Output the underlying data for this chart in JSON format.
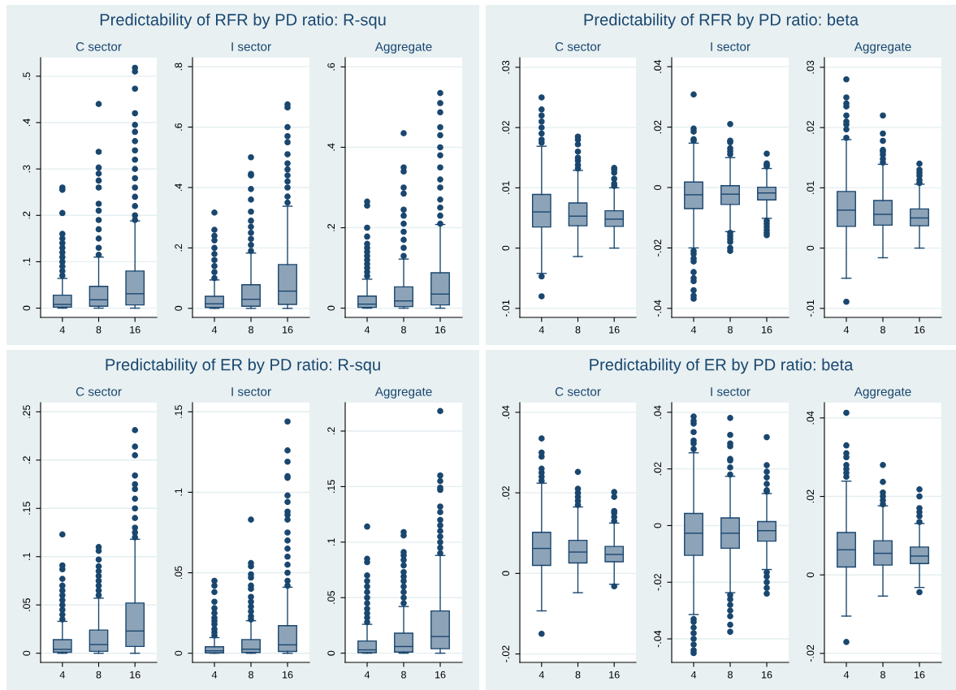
{
  "chart_data": [
    {
      "type": "box",
      "title": "Predictability of RFR by PD ratio: R-squ",
      "subtitle": "C sector",
      "categories": [
        "4",
        "8",
        "16"
      ],
      "color": "#8da3b8",
      "grid": "y",
      "ylim": [
        -0.02,
        0.54
      ],
      "yticks": [
        0,
        {
          "value": 0.1,
          "label": ".1"
        },
        {
          "value": 0.2,
          "label": ".2"
        },
        {
          "value": 0.3,
          "label": ".3"
        },
        {
          "value": 0.4,
          "label": ".4"
        },
        {
          "value": 0.5,
          "label": ".5"
        }
      ],
      "boxes": [
        {
          "low": 0,
          "q1": 0.002,
          "median": 0.008,
          "q3": 0.028,
          "high": 0.064,
          "outliers": [
            0.07,
            0.08,
            0.09,
            0.1,
            0.11,
            0.12,
            0.13,
            0.14,
            0.15,
            0.16,
            0.205,
            0.255,
            0.26
          ]
        },
        {
          "low": 0,
          "q1": 0.004,
          "median": 0.018,
          "q3": 0.047,
          "high": 0.11,
          "outliers": [
            0.115,
            0.13,
            0.15,
            0.17,
            0.19,
            0.21,
            0.225,
            0.26,
            0.275,
            0.29,
            0.303,
            0.337,
            0.44
          ]
        },
        {
          "low": 0,
          "q1": 0.007,
          "median": 0.031,
          "q3": 0.08,
          "high": 0.188,
          "outliers": [
            0.19,
            0.2,
            0.22,
            0.24,
            0.26,
            0.28,
            0.3,
            0.32,
            0.34,
            0.36,
            0.38,
            0.395,
            0.42,
            0.473,
            0.51,
            0.518
          ]
        }
      ]
    },
    {
      "type": "box",
      "subtitle": "I sector",
      "categories": [
        "4",
        "8",
        "16"
      ],
      "color": "#8da3b8",
      "grid": "y",
      "ylim": [
        -0.03,
        0.83
      ],
      "yticks": [
        0,
        {
          "value": 0.2,
          "label": ".2"
        },
        {
          "value": 0.4,
          "label": ".4"
        },
        {
          "value": 0.6,
          "label": ".6"
        },
        {
          "value": 0.8,
          "label": ".8"
        }
      ],
      "boxes": [
        {
          "low": 0,
          "q1": 0.003,
          "median": 0.015,
          "q3": 0.04,
          "high": 0.094,
          "outliers": [
            0.1,
            0.12,
            0.14,
            0.16,
            0.18,
            0.2,
            0.225,
            0.24,
            0.26,
            0.317
          ]
        },
        {
          "low": 0,
          "q1": 0.007,
          "median": 0.03,
          "q3": 0.078,
          "high": 0.183,
          "outliers": [
            0.19,
            0.21,
            0.23,
            0.25,
            0.27,
            0.29,
            0.32,
            0.36,
            0.395,
            0.44,
            0.445,
            0.5
          ]
        },
        {
          "low": 0,
          "q1": 0.013,
          "median": 0.057,
          "q3": 0.145,
          "high": 0.338,
          "outliers": [
            0.35,
            0.37,
            0.4,
            0.42,
            0.44,
            0.46,
            0.48,
            0.51,
            0.55,
            0.57,
            0.6,
            0.665,
            0.675
          ]
        }
      ]
    },
    {
      "type": "box",
      "subtitle": "Aggregate",
      "categories": [
        "4",
        "8",
        "16"
      ],
      "color": "#8da3b8",
      "grid": "y",
      "ylim": [
        -0.023,
        0.623
      ],
      "yticks": [
        0,
        {
          "value": 0.2,
          "label": ".2"
        },
        {
          "value": 0.4,
          "label": ".4"
        },
        {
          "value": 0.6,
          "label": ".6"
        }
      ],
      "boxes": [
        {
          "low": 0,
          "q1": 0.002,
          "median": 0.01,
          "q3": 0.03,
          "high": 0.072,
          "outliers": [
            0.08,
            0.09,
            0.1,
            0.11,
            0.12,
            0.13,
            0.14,
            0.15,
            0.16,
            0.178,
            0.2,
            0.255,
            0.265
          ]
        },
        {
          "low": 0,
          "q1": 0.004,
          "median": 0.018,
          "q3": 0.053,
          "high": 0.122,
          "outliers": [
            0.13,
            0.15,
            0.17,
            0.19,
            0.21,
            0.23,
            0.245,
            0.285,
            0.3,
            0.34,
            0.35,
            0.435
          ]
        },
        {
          "low": 0,
          "q1": 0.008,
          "median": 0.035,
          "q3": 0.088,
          "high": 0.208,
          "outliers": [
            0.21,
            0.23,
            0.25,
            0.27,
            0.3,
            0.32,
            0.35,
            0.38,
            0.4,
            0.43,
            0.45,
            0.487,
            0.51,
            0.535
          ]
        }
      ]
    },
    {
      "type": "box",
      "title": "Predictability of RFR by PD ratio: beta",
      "subtitle": "C sector",
      "categories": [
        "4",
        "8",
        "16"
      ],
      "color": "#8da3b8",
      "grid": "y",
      "ylim": [
        -0.0115,
        0.0316
      ],
      "yticks": [
        {
          "value": -0.01,
          "label": "-.01"
        },
        0,
        {
          "value": 0.01,
          "label": ".01"
        },
        {
          "value": 0.02,
          "label": ".02"
        },
        {
          "value": 0.03,
          "label": ".03"
        }
      ],
      "boxes": [
        {
          "low": -0.0042,
          "q1": 0.0035,
          "median": 0.006,
          "q3": 0.0089,
          "high": 0.0169,
          "outliers": [
            -0.008,
            -0.0047,
            0.0175,
            0.018,
            0.019,
            0.02,
            0.021,
            0.022,
            0.023,
            0.025
          ]
        },
        {
          "low": -0.0014,
          "q1": 0.0037,
          "median": 0.0053,
          "q3": 0.0075,
          "high": 0.0129,
          "outliers": [
            0.0132,
            0.0138,
            0.0145,
            0.015,
            0.016,
            0.0172,
            0.018,
            0.0185
          ]
        },
        {
          "low": 0,
          "q1": 0.0036,
          "median": 0.0048,
          "q3": 0.0062,
          "high": 0.01,
          "outliers": [
            0.0103,
            0.0107,
            0.0115,
            0.0125,
            0.013,
            0.0133
          ]
        }
      ]
    },
    {
      "type": "box",
      "subtitle": "I sector",
      "categories": [
        "4",
        "8",
        "16"
      ],
      "color": "#8da3b8",
      "grid": "y",
      "ylim": [
        -0.043,
        0.043
      ],
      "yticks": [
        {
          "value": -0.04,
          "label": "-.04"
        },
        {
          "value": -0.02,
          "label": "-.02"
        },
        0,
        {
          "value": 0.02,
          "label": ".02"
        },
        {
          "value": 0.04,
          "label": ".04"
        }
      ],
      "boxes": [
        {
          "low": -0.02,
          "q1": -0.007,
          "median": -0.0024,
          "q3": 0.0018,
          "high": 0.0147,
          "outliers": [
            -0.0368,
            -0.0358,
            -0.034,
            -0.031,
            -0.03,
            -0.028,
            -0.0245,
            -0.0235,
            -0.022,
            -0.021,
            0.0155,
            0.016,
            0.0185,
            0.0195,
            0.0308
          ]
        },
        {
          "low": -0.0146,
          "q1": -0.0056,
          "median": -0.0022,
          "q3": 0.0006,
          "high": 0.0099,
          "outliers": [
            -0.021,
            -0.02,
            -0.018,
            -0.017,
            -0.016,
            -0.015,
            0.011,
            0.012,
            0.013,
            0.015,
            0.0155,
            0.021
          ]
        },
        {
          "low": -0.0102,
          "q1": -0.0041,
          "median": -0.0018,
          "q3": 0.0001,
          "high": 0.0063,
          "outliers": [
            -0.0158,
            -0.015,
            -0.014,
            -0.013,
            -0.012,
            -0.011,
            0.007,
            0.0075,
            0.008,
            0.0112
          ]
        }
      ]
    },
    {
      "type": "box",
      "subtitle": "Aggregate",
      "categories": [
        "4",
        "8",
        "16"
      ],
      "color": "#8da3b8",
      "grid": "y",
      "ylim": [
        -0.0115,
        0.0316
      ],
      "yticks": [
        {
          "value": -0.01,
          "label": "-.01"
        },
        0,
        {
          "value": 0.01,
          "label": ".01"
        },
        {
          "value": 0.02,
          "label": ".02"
        },
        {
          "value": 0.03,
          "label": ".03"
        }
      ],
      "boxes": [
        {
          "low": -0.005,
          "q1": 0.0036,
          "median": 0.0063,
          "q3": 0.0094,
          "high": 0.018,
          "outliers": [
            -0.0089,
            0.0183,
            0.0197,
            0.0205,
            0.021,
            0.022,
            0.0235,
            0.024,
            0.025,
            0.028
          ]
        },
        {
          "low": -0.0016,
          "q1": 0.0038,
          "median": 0.0056,
          "q3": 0.0079,
          "high": 0.0139,
          "outliers": [
            0.0142,
            0.0148,
            0.0155,
            0.016,
            0.0163,
            0.0178,
            0.019,
            0.022
          ]
        },
        {
          "low": 0,
          "q1": 0.0037,
          "median": 0.005,
          "q3": 0.0065,
          "high": 0.0106,
          "outliers": [
            0.0108,
            0.0113,
            0.012,
            0.0125,
            0.013,
            0.014
          ]
        }
      ]
    },
    {
      "type": "box",
      "title": "Predictability of ER by PD ratio: R-squ",
      "subtitle": "C sector",
      "categories": [
        "4",
        "8",
        "16"
      ],
      "color": "#8da3b8",
      "grid": "y",
      "ylim": [
        -0.0095,
        0.2595
      ],
      "yticks": [
        0,
        {
          "value": 0.05,
          "label": ".05"
        },
        {
          "value": 0.1,
          "label": ".1"
        },
        {
          "value": 0.15,
          "label": ".15"
        },
        {
          "value": 0.2,
          "label": ".2"
        },
        {
          "value": 0.25,
          "label": ".25"
        }
      ],
      "boxes": [
        {
          "low": 0,
          "q1": 0.001,
          "median": 0.004,
          "q3": 0.014,
          "high": 0.033,
          "outliers": [
            0.035,
            0.04,
            0.045,
            0.05,
            0.055,
            0.06,
            0.065,
            0.07,
            0.077,
            0.087,
            0.091,
            0.123
          ]
        },
        {
          "low": 0,
          "q1": 0.002,
          "median": 0.009,
          "q3": 0.024,
          "high": 0.057,
          "outliers": [
            0.06,
            0.065,
            0.07,
            0.075,
            0.08,
            0.085,
            0.09,
            0.097,
            0.106,
            0.11
          ]
        },
        {
          "low": 0,
          "q1": 0.007,
          "median": 0.023,
          "q3": 0.052,
          "high": 0.118,
          "outliers": [
            0.12,
            0.125,
            0.13,
            0.14,
            0.15,
            0.16,
            0.17,
            0.175,
            0.184,
            0.205,
            0.214,
            0.231
          ]
        }
      ]
    },
    {
      "type": "box",
      "subtitle": "I sector",
      "categories": [
        "4",
        "8",
        "16"
      ],
      "color": "#8da3b8",
      "grid": "y",
      "ylim": [
        -0.0057,
        0.1557
      ],
      "yticks": [
        0,
        {
          "value": 0.05,
          "label": ".05"
        },
        {
          "value": 0.1,
          "label": ".1"
        },
        {
          "value": 0.15,
          "label": ".15"
        }
      ],
      "boxes": [
        {
          "low": 0,
          "q1": 0.0002,
          "median": 0.0015,
          "q3": 0.004,
          "high": 0.0097,
          "outliers": [
            0.011,
            0.013,
            0.015,
            0.018,
            0.02,
            0.022,
            0.025,
            0.028,
            0.032,
            0.038,
            0.042,
            0.045
          ]
        },
        {
          "low": 0,
          "q1": 0.0005,
          "median": 0.0025,
          "q3": 0.0085,
          "high": 0.0202,
          "outliers": [
            0.021,
            0.023,
            0.026,
            0.029,
            0.032,
            0.035,
            0.04,
            0.042,
            0.047,
            0.049,
            0.054,
            0.056,
            0.083
          ]
        },
        {
          "low": 0,
          "q1": 0.0011,
          "median": 0.0052,
          "q3": 0.0171,
          "high": 0.041,
          "outliers": [
            0.042,
            0.045,
            0.05,
            0.055,
            0.06,
            0.065,
            0.07,
            0.075,
            0.083,
            0.086,
            0.088,
            0.094,
            0.098,
            0.109,
            0.11,
            0.119,
            0.126,
            0.144
          ]
        }
      ]
    },
    {
      "type": "box",
      "subtitle": "Aggregate",
      "categories": [
        "4",
        "8",
        "16"
      ],
      "color": "#8da3b8",
      "grid": "y",
      "ylim": [
        -0.0083,
        0.2256
      ],
      "yticks": [
        0,
        {
          "value": 0.05,
          "label": ".05"
        },
        {
          "value": 0.1,
          "label": ".1"
        },
        {
          "value": 0.15,
          "label": ".15"
        },
        {
          "value": 0.2,
          "label": ".2"
        }
      ],
      "boxes": [
        {
          "low": 0,
          "q1": 0.0005,
          "median": 0.003,
          "q3": 0.011,
          "high": 0.026,
          "outliers": [
            0.028,
            0.032,
            0.036,
            0.04,
            0.045,
            0.05,
            0.055,
            0.06,
            0.065,
            0.07,
            0.082,
            0.085,
            0.114
          ]
        },
        {
          "low": 0,
          "q1": 0.001,
          "median": 0.006,
          "q3": 0.018,
          "high": 0.042,
          "outliers": [
            0.045,
            0.05,
            0.055,
            0.06,
            0.065,
            0.069,
            0.073,
            0.079,
            0.084,
            0.088,
            0.091,
            0.106,
            0.109
          ]
        },
        {
          "low": 0,
          "q1": 0.004,
          "median": 0.015,
          "q3": 0.038,
          "high": 0.088,
          "outliers": [
            0.09,
            0.095,
            0.1,
            0.105,
            0.11,
            0.115,
            0.12,
            0.127,
            0.132,
            0.147,
            0.149,
            0.155,
            0.16,
            0.218
          ]
        }
      ]
    },
    {
      "type": "box",
      "title": "Predictability of ER by PD ratio: beta",
      "subtitle": "C sector",
      "categories": [
        "4",
        "8",
        "16"
      ],
      "color": "#8da3b8",
      "grid": "y",
      "ylim": [
        -0.0221,
        0.0424
      ],
      "yticks": [
        {
          "value": -0.02,
          "label": "-.02"
        },
        0,
        {
          "value": 0.02,
          "label": ".02"
        },
        {
          "value": 0.04,
          "label": ".04"
        }
      ],
      "boxes": [
        {
          "low": -0.0093,
          "q1": 0.002,
          "median": 0.0062,
          "q3": 0.0102,
          "high": 0.0224,
          "outliers": [
            -0.015,
            0.023,
            0.024,
            0.025,
            0.026,
            0.029,
            0.03,
            0.0335
          ]
        },
        {
          "low": -0.0048,
          "q1": 0.0026,
          "median": 0.0053,
          "q3": 0.0082,
          "high": 0.0165,
          "outliers": [
            0.017,
            0.018,
            0.019,
            0.02,
            0.021,
            0.0252
          ]
        },
        {
          "low": -0.0027,
          "q1": 0.0029,
          "median": 0.0047,
          "q3": 0.0067,
          "high": 0.0125,
          "outliers": [
            -0.0032,
            0.013,
            0.014,
            0.015,
            0.0155,
            0.019,
            0.0202
          ]
        }
      ]
    },
    {
      "type": "box",
      "subtitle": "I sector",
      "categories": [
        "4",
        "8",
        "16"
      ],
      "color": "#8da3b8",
      "grid": "y",
      "ylim": [
        -0.0483,
        0.0434
      ],
      "yticks": [
        {
          "value": -0.04,
          "label": "-.04"
        },
        {
          "value": -0.02,
          "label": "-.02"
        },
        0,
        {
          "value": 0.02,
          "label": ".02"
        },
        {
          "value": 0.04,
          "label": ".04"
        }
      ],
      "boxes": [
        {
          "low": -0.0314,
          "q1": -0.0105,
          "median": -0.0027,
          "q3": 0.0043,
          "high": 0.0257,
          "outliers": [
            -0.045,
            -0.044,
            -0.042,
            -0.04,
            -0.038,
            -0.036,
            -0.034,
            -0.033,
            0.027,
            0.029,
            0.03,
            0.033,
            0.036,
            0.037,
            0.0385
          ]
        },
        {
          "low": -0.0237,
          "q1": -0.008,
          "median": -0.0027,
          "q3": 0.0027,
          "high": 0.0174,
          "outliers": [
            -0.0375,
            -0.035,
            -0.032,
            -0.03,
            -0.028,
            -0.026,
            -0.0245,
            0.018,
            0.0205,
            0.023,
            0.0235,
            0.028,
            0.029,
            0.032,
            0.038
          ]
        },
        {
          "low": -0.0155,
          "q1": -0.0055,
          "median": -0.0018,
          "q3": 0.0014,
          "high": 0.0113,
          "outliers": [
            -0.024,
            -0.022,
            -0.02,
            -0.018,
            -0.0165,
            0.012,
            0.0125,
            0.0147,
            0.017,
            0.019,
            0.0213,
            0.0312
          ]
        }
      ]
    },
    {
      "type": "box",
      "subtitle": "Aggregate",
      "categories": [
        "4",
        "8",
        "16"
      ],
      "color": "#8da3b8",
      "grid": "y",
      "ylim": [
        -0.0223,
        0.0439
      ],
      "yticks": [
        {
          "value": -0.02,
          "label": "-.02"
        },
        0,
        {
          "value": 0.02,
          "label": ".02"
        },
        {
          "value": 0.04,
          "label": ".04"
        }
      ],
      "boxes": [
        {
          "low": -0.0105,
          "q1": 0.002,
          "median": 0.0064,
          "q3": 0.0108,
          "high": 0.0239,
          "outliers": [
            -0.0171,
            0.025,
            0.026,
            0.027,
            0.028,
            0.03,
            0.031,
            0.033,
            0.0413
          ]
        },
        {
          "low": -0.0054,
          "q1": 0.0025,
          "median": 0.0055,
          "q3": 0.0087,
          "high": 0.0176,
          "outliers": [
            0.018,
            0.019,
            0.02,
            0.021,
            0.0237,
            0.028
          ]
        },
        {
          "low": -0.0032,
          "q1": 0.0029,
          "median": 0.0048,
          "q3": 0.0071,
          "high": 0.0131,
          "outliers": [
            -0.0044,
            0.0135,
            0.015,
            0.016,
            0.017,
            0.02,
            0.0218
          ]
        }
      ]
    }
  ]
}
